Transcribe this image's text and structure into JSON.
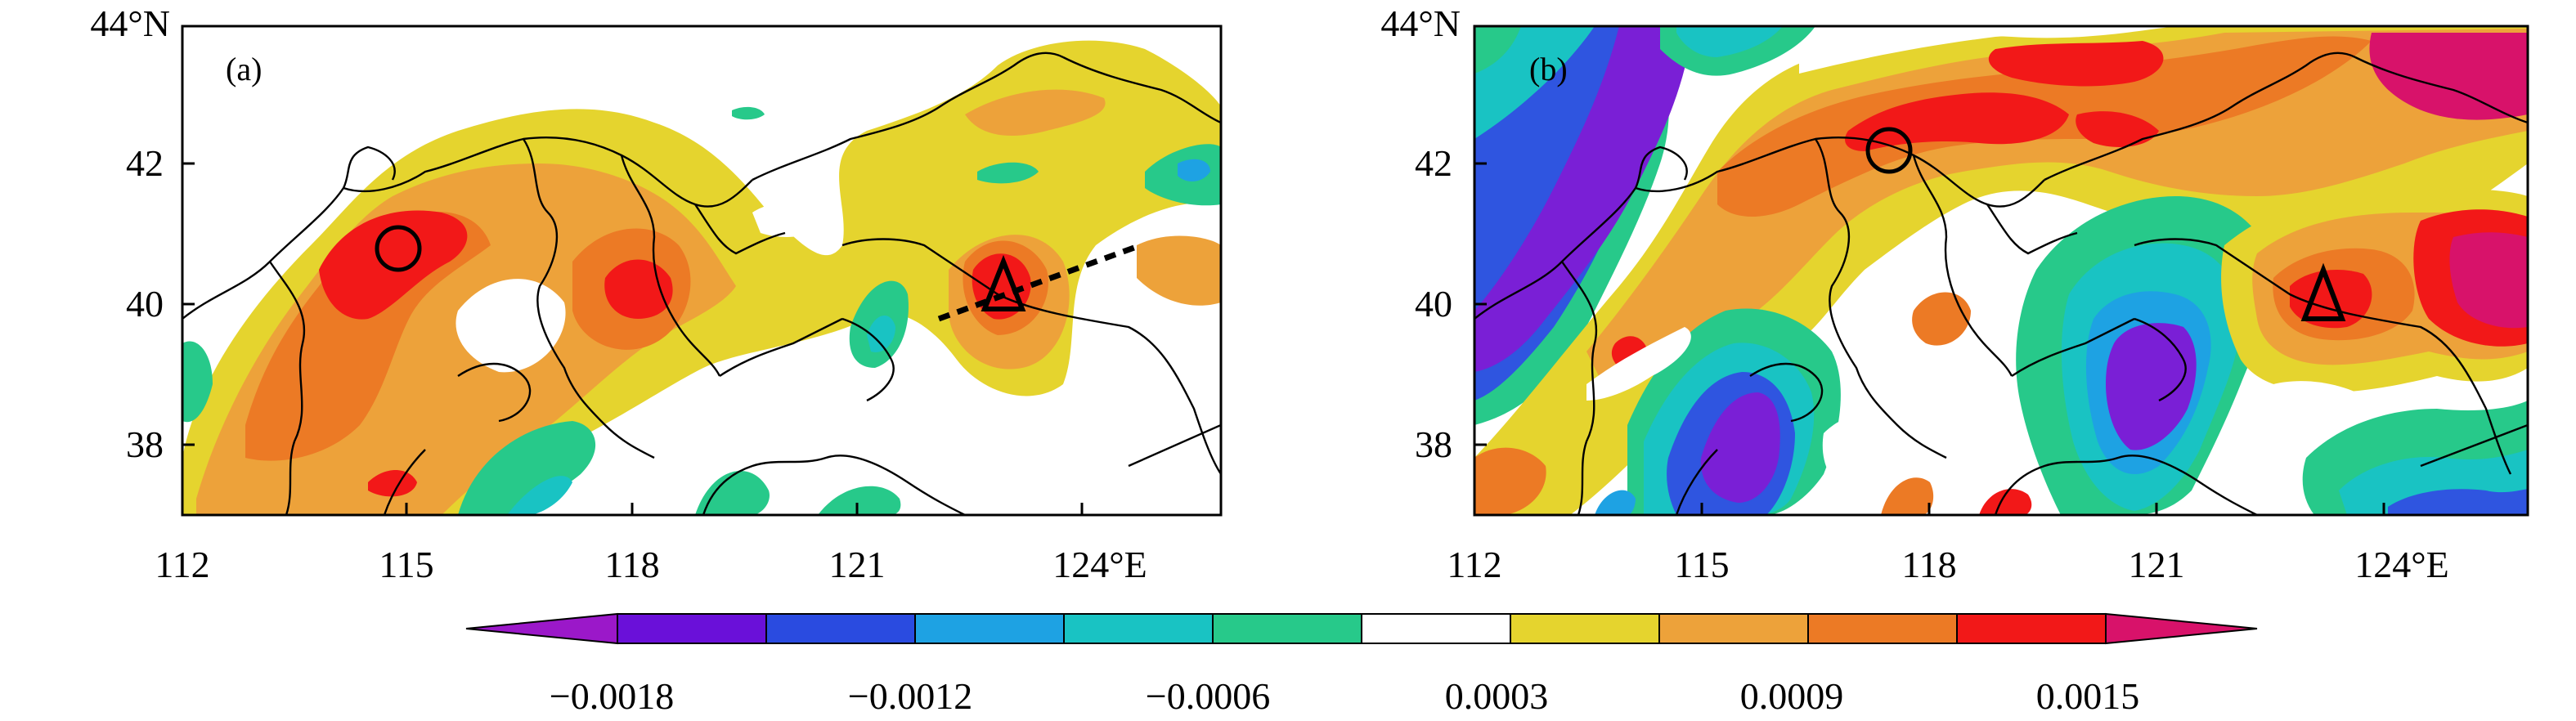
{
  "panels": [
    {
      "label": "(a)",
      "y_ticks": [
        "44°N",
        "42",
        "40",
        "38"
      ],
      "x_ticks": [
        "112",
        "115",
        "118",
        "121",
        "124°E"
      ],
      "markers": [
        "circle",
        "triangle"
      ],
      "has_dashed_section_line": true
    },
    {
      "label": "(b)",
      "y_ticks": [
        "44°N",
        "42",
        "40",
        "38"
      ],
      "x_ticks": [
        "112",
        "115",
        "118",
        "121",
        "124°E"
      ],
      "markers": [
        "circle",
        "triangle"
      ],
      "has_dashed_section_line": false
    }
  ],
  "colorbar": {
    "labels": [
      "−0.0018",
      "−0.0012",
      "−0.0006",
      "0.0003",
      "0.0009",
      "0.0015"
    ],
    "colors": [
      "#9b18c9",
      "#6a10d9",
      "#2a4be0",
      "#1ea2e3",
      "#19c3c3",
      "#27c98a",
      "#ffffff",
      "#e5d42e",
      "#eda23a",
      "#ec7a25",
      "#f21818",
      "#d8126a"
    ]
  },
  "palette": {
    "purple": "#7a1fd6",
    "blue": "#2f55e0",
    "lightblue": "#1ea2e3",
    "cyan": "#19c3c3",
    "green": "#27c98a",
    "yellow": "#e5d42e",
    "lightorange": "#eda23a",
    "orange": "#ec7a25",
    "red": "#f21818",
    "magenta": "#d8126a"
  }
}
